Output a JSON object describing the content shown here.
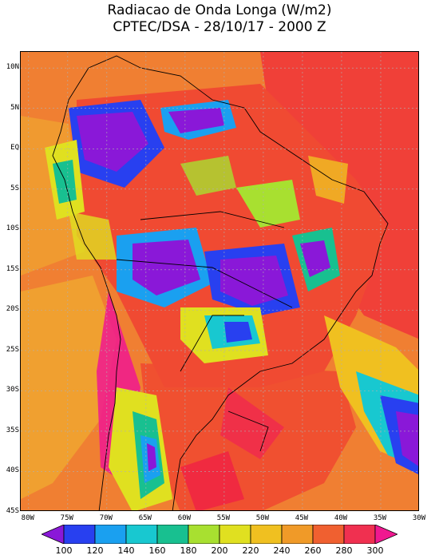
{
  "header": {
    "title": "Radiacao de Onda Longa (W/m2)",
    "subtitle": "CPTEC/DSA - 28/10/17 - 2000 Z"
  },
  "map": {
    "lat_labels": [
      "10N",
      "5N",
      "EQ",
      "5S",
      "10S",
      "15S",
      "20S",
      "25S",
      "30S",
      "35S",
      "40S",
      "45S"
    ],
    "lat_values": [
      10,
      5,
      0,
      -5,
      -10,
      -15,
      -20,
      -25,
      -30,
      -35,
      -40,
      -45
    ],
    "lon_labels": [
      "80W",
      "75W",
      "70W",
      "65W",
      "60W",
      "55W",
      "50W",
      "45W",
      "40W",
      "35W",
      "30W"
    ],
    "lon_values": [
      -80,
      -75,
      -70,
      -65,
      -60,
      -55,
      -50,
      -45,
      -40,
      -35,
      -30
    ],
    "lat_range": [
      -45,
      12
    ],
    "lon_range": [
      -81,
      -30
    ],
    "grid": "dotted"
  },
  "colorbar": {
    "labels": [
      "100",
      "120",
      "140",
      "160",
      "180",
      "200",
      "220",
      "240",
      "260",
      "280",
      "300"
    ],
    "colors": [
      "#8a18d8",
      "#2840f0",
      "#1aa0f0",
      "#18c8d0",
      "#18c090",
      "#a8e030",
      "#e0e020",
      "#f0c020",
      "#f09a28",
      "#f06030",
      "#f03050",
      "#f01890"
    ]
  }
}
